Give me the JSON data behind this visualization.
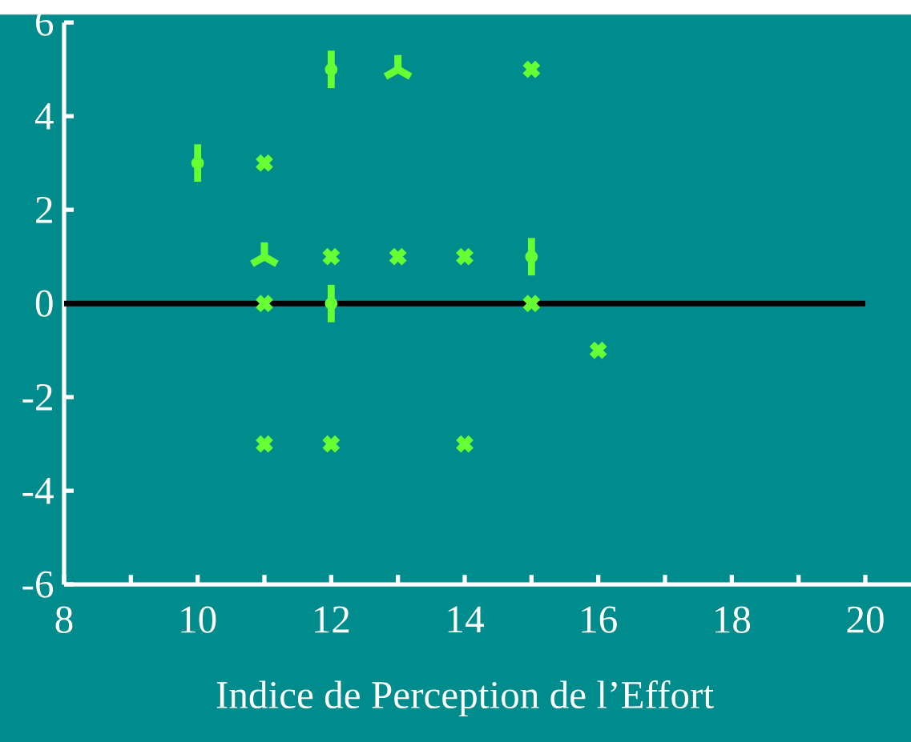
{
  "chart_data": {
    "type": "scatter",
    "xlabel": "Indice de Perception de l’Effort",
    "xlim": [
      8,
      20
    ],
    "ylim": [
      -6,
      6
    ],
    "xticks": [
      8,
      {
        "value": 9,
        "label": null
      },
      10,
      {
        "value": 11,
        "label": null
      },
      12,
      {
        "value": 13,
        "label": null
      },
      14,
      {
        "value": 15,
        "label": null
      },
      16,
      {
        "value": 17,
        "label": null
      },
      18,
      {
        "value": 19,
        "label": null
      },
      20
    ],
    "yticks": [
      -6,
      -4,
      -2,
      0,
      2,
      4,
      6
    ],
    "grid": false,
    "legend": false,
    "ref_lines": [
      {
        "axis": "y",
        "value": 0,
        "color": "#000000"
      }
    ],
    "series": [
      {
        "marker": "cross",
        "color": "#66ff33",
        "x": [
          11,
          15,
          12,
          13,
          14,
          11,
          15,
          16,
          11,
          12,
          14
        ],
        "values": [
          3,
          5,
          1,
          1,
          1,
          0,
          0,
          -1,
          -3,
          -3,
          -3
        ]
      },
      {
        "marker": "circle",
        "color": "#66ff33",
        "x": [
          10,
          12,
          12,
          15
        ],
        "values": [
          3,
          5,
          0,
          1
        ],
        "errors": [
          0.4,
          0.4,
          0.4,
          0.4
        ]
      },
      {
        "marker": "star",
        "color": "#66ff33",
        "x": [
          13,
          11
        ],
        "values": [
          5,
          1
        ]
      }
    ]
  }
}
